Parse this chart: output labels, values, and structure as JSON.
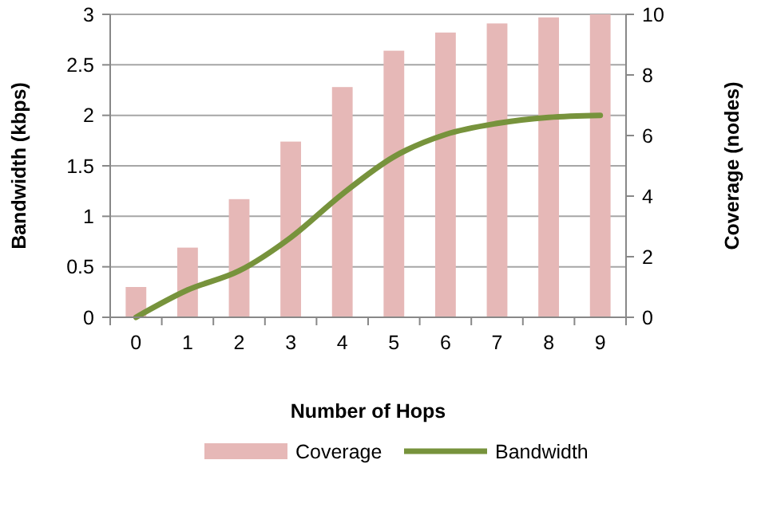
{
  "chart_data": {
    "type": "bar",
    "xlabel": "Number of Hops",
    "ylabel": "Bandwidth (kbps)",
    "y2label": "Coverage (nodes)",
    "categories": [
      "0",
      "1",
      "2",
      "3",
      "4",
      "5",
      "6",
      "7",
      "8",
      "9"
    ],
    "series": [
      {
        "name": "Coverage",
        "axis": "y2",
        "color": "#e6b8b7",
        "values": [
          1.0,
          2.3,
          3.9,
          5.8,
          7.6,
          8.8,
          9.4,
          9.7,
          9.9,
          10
        ]
      },
      {
        "name": "Bandwidth",
        "type": "line",
        "axis": "y",
        "color": "#77933c",
        "values": [
          0,
          0.27,
          0.46,
          0.79,
          1.22,
          1.59,
          1.81,
          1.92,
          1.98,
          2.0
        ]
      }
    ],
    "ylim": [
      0,
      3
    ],
    "yticks": [
      0,
      0.5,
      1,
      1.5,
      2,
      2.5,
      3
    ],
    "y2lim": [
      0,
      10
    ],
    "y2ticks": [
      0,
      2,
      4,
      6,
      8,
      10
    ],
    "grid": "y",
    "legend": "bottom"
  }
}
